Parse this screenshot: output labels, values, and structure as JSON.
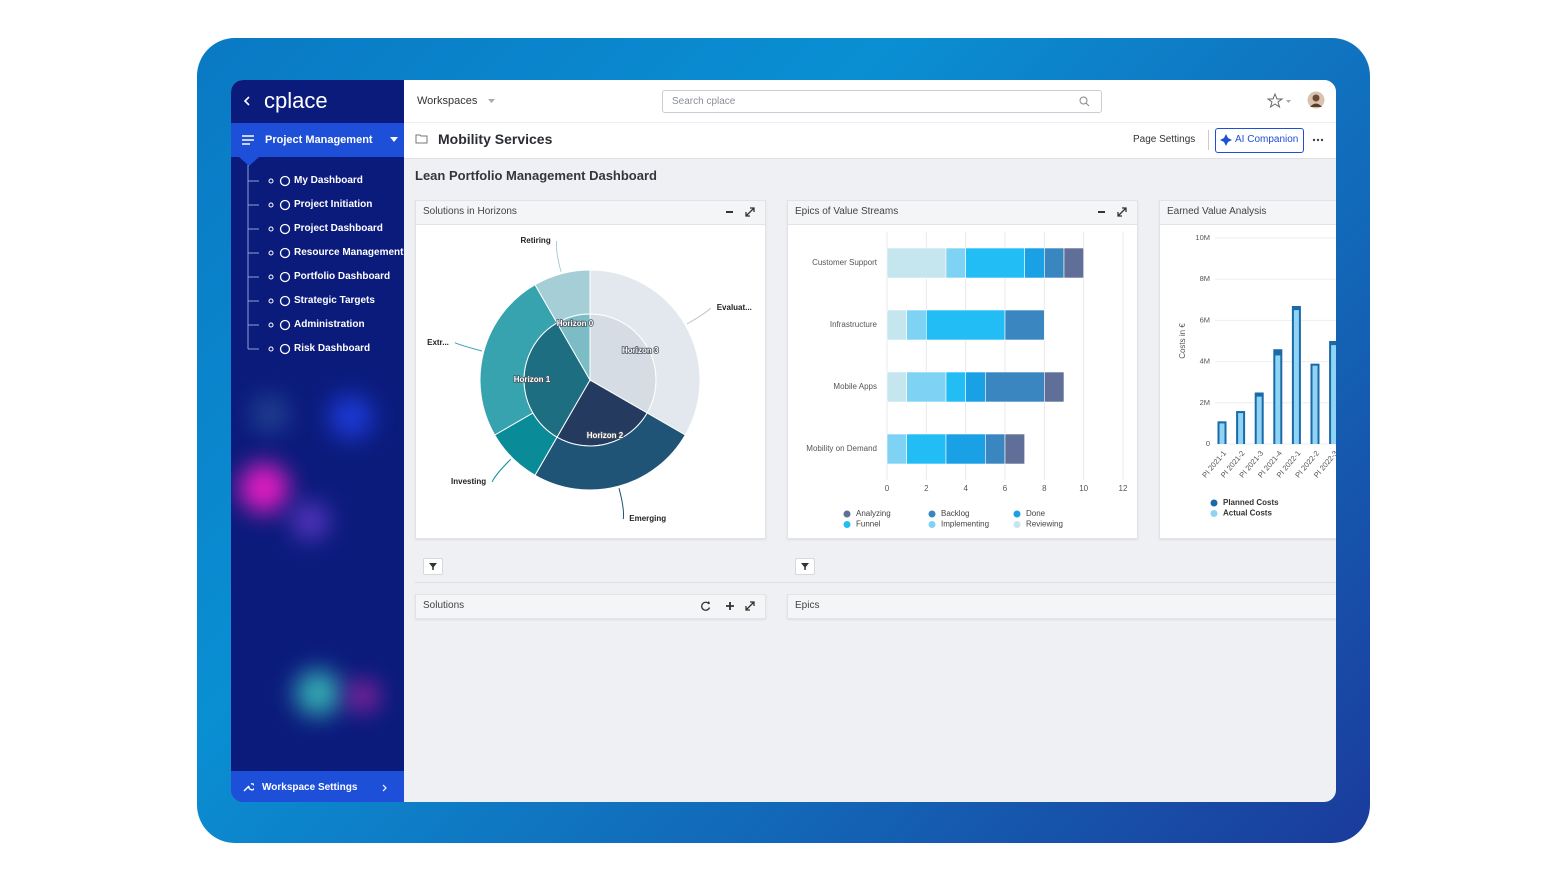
{
  "sidebar": {
    "logo": "cplace",
    "workspace": "Project Management",
    "nav": [
      "My Dashboard",
      "Project Initiation",
      "Project Dashboard",
      "Resource Management",
      "Portfolio Dashboard",
      "Strategic Targets",
      "Administration",
      "Risk Dashboard"
    ],
    "footer": "Workspace Settings"
  },
  "header": {
    "workspaces": "Workspaces",
    "search_placeholder": "Search cplace",
    "page_title": "Mobility Services",
    "page_settings": "Page Settings",
    "ai_companion": "AI Companion"
  },
  "dashboard": {
    "title": "Lean Portfolio Management Dashboard",
    "widgets": [
      {
        "title": "Solutions in Horizons",
        "chart": {
          "type": "sunburst",
          "inner": {
            "labels": [
              "Horizon 3",
              "Horizon 2",
              "Horizon 1",
              "Horizon 0"
            ],
            "values": [
              4,
              3,
              4,
              1
            ],
            "colors": [
              "#d5dce4",
              "#243a5f",
              "#1c6e80",
              "#7cbcc5"
            ]
          },
          "outer": {
            "labels": [
              "Evaluat...",
              "Emerging",
              "Investing",
              "Extr...",
              "Retiring"
            ],
            "values": [
              4,
              3,
              1,
              3,
              1
            ],
            "colors": [
              "#e2e8ee",
              "#1f5476",
              "#0a8b98",
              "#37a3ae",
              "#a6ced6"
            ]
          }
        }
      },
      {
        "title": "Epics of Value Streams",
        "chart": {
          "type": "bar",
          "orientation": "horizontal",
          "stacked": true,
          "categories": [
            "Customer Support",
            "Infrastructure",
            "Mobile Apps",
            "Mobility on Demand"
          ],
          "series": [
            {
              "name": "Analyzing",
              "color": "#5f6f98",
              "values": [
                1,
                0,
                1,
                1
              ]
            },
            {
              "name": "Backlog",
              "color": "#3a86c0",
              "values": [
                1,
                2,
                3,
                1
              ]
            },
            {
              "name": "Done",
              "color": "#1aa0e4",
              "values": [
                1,
                0,
                1,
                2
              ]
            },
            {
              "name": "Funnel",
              "color": "#23bdf5",
              "values": [
                3,
                4,
                1,
                2
              ]
            },
            {
              "name": "Implementing",
              "color": "#7ed2f4",
              "values": [
                1,
                1,
                2,
                1
              ]
            },
            {
              "name": "Reviewing",
              "color": "#c5e5ef",
              "values": [
                3,
                1,
                1,
                0
              ]
            }
          ],
          "xlim": [
            0,
            12
          ],
          "xticks": [
            0,
            2,
            4,
            6,
            8,
            10,
            12
          ],
          "grid": true
        }
      },
      {
        "title": "Earned Value Analysis",
        "chart": {
          "type": "bar",
          "y_label": "Costs in €",
          "categories": [
            "PI 2021-1",
            "PI 2021-2",
            "PI 2021-3",
            "PI 2021-4",
            "PI 2022-1",
            "PI 2022-2",
            "PI 2022-3"
          ],
          "series": [
            {
              "name": "Planned Costs",
              "color": "#1b6aa8",
              "values": [
                1100000,
                1600000,
                2500000,
                4600000,
                6700000,
                3900000,
                5000000
              ]
            },
            {
              "name": "Actual Costs",
              "color": "#8fd3f5",
              "values": [
                1000000,
                1500000,
                2300000,
                4300000,
                6500000,
                3800000,
                4800000
              ]
            }
          ],
          "ylim": [
            0,
            10000000
          ],
          "yticks": [
            0,
            {
              "value": 2000000,
              "label": "2M"
            },
            {
              "value": 4000000,
              "label": "4M"
            },
            {
              "value": 6000000,
              "label": "6M"
            },
            {
              "value": 8000000,
              "label": "8M"
            },
            {
              "value": 10000000,
              "label": "10M"
            }
          ],
          "grid": true
        }
      }
    ],
    "lists": [
      {
        "title": "Solutions"
      },
      {
        "title": "Epics"
      }
    ]
  }
}
